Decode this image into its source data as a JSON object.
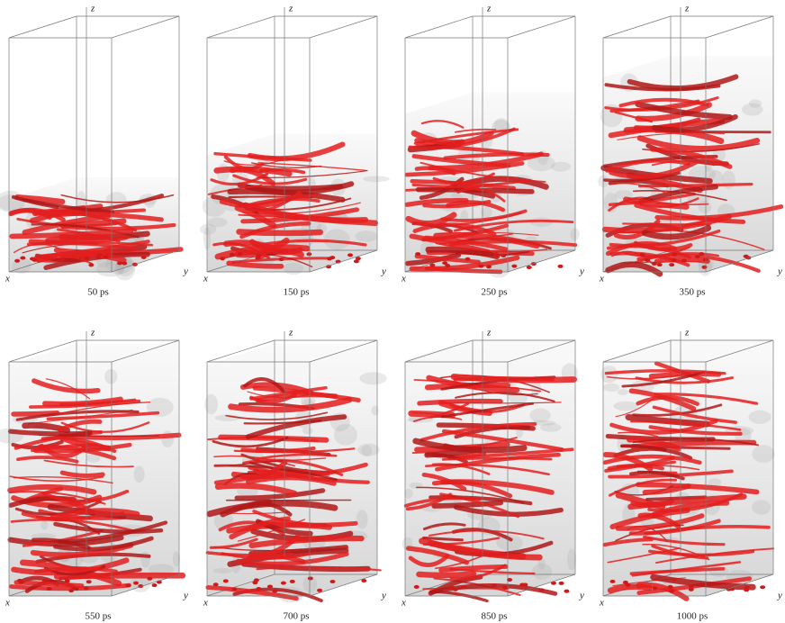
{
  "axes": {
    "x": "x",
    "y": "y",
    "z": "z"
  },
  "panels": [
    {
      "label": "50 ps"
    },
    {
      "label": "150 ps"
    },
    {
      "label": "250 ps"
    },
    {
      "label": "350 ps"
    },
    {
      "label": "550 ps"
    },
    {
      "label": "700 ps"
    },
    {
      "label": "850 ps"
    },
    {
      "label": "1000 ps"
    }
  ]
}
